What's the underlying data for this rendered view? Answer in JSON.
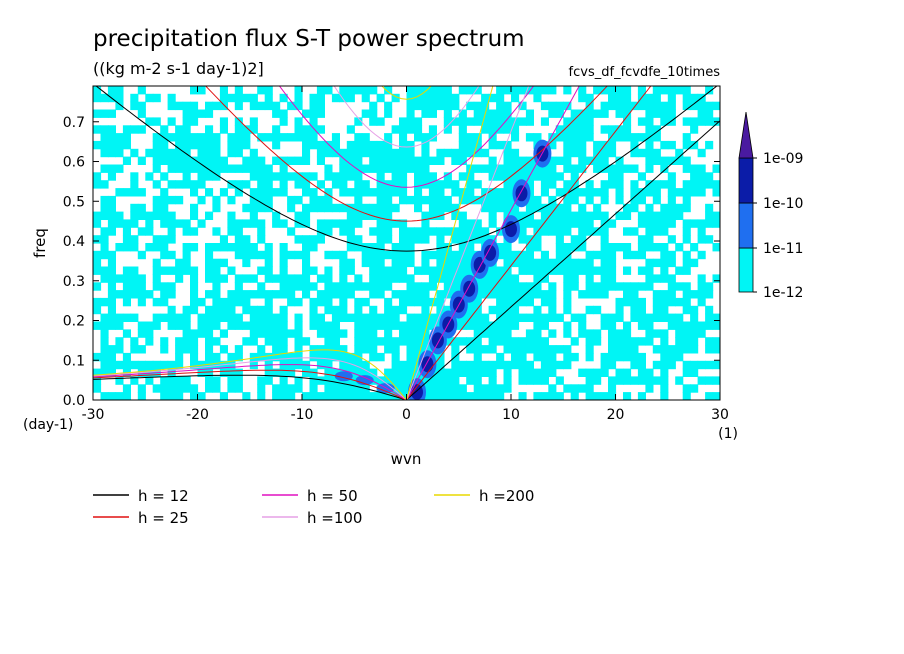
{
  "chart_data": {
    "type": "heatmap",
    "title": "precipitation flux S-T power spectrum",
    "subtitle": "((kg m-2 s-1 day-1)2]",
    "dataset_label": "fcvs_df_fcvdfe_10times",
    "xlabel": "wvn",
    "ylabel": "freq",
    "x_unit": "(1)",
    "y_unit": "(day-1)",
    "xlim": [
      -30,
      30
    ],
    "ylim": [
      0,
      0.79
    ],
    "x_ticks": [
      -30,
      -20,
      -10,
      0,
      10,
      20,
      30
    ],
    "x_tick_labels": [
      "-30",
      "-20",
      "-10",
      "0",
      "10",
      "20",
      "30"
    ],
    "y_ticks": [
      0,
      0.1,
      0.2,
      0.3,
      0.4,
      0.5,
      0.6,
      0.7
    ],
    "y_tick_labels": [
      "0.0",
      "0.1",
      "0.2",
      "0.3",
      "0.4",
      "0.5",
      "0.6",
      "0.7"
    ],
    "colorbar": {
      "labels": [
        "1e-12",
        "1e-11",
        "1e-10",
        "1e-09"
      ],
      "colors": [
        "#00f5f5",
        "#1f6ff0",
        "#0b1ca8",
        "#4a1aa0"
      ]
    },
    "dispersion_curves": [
      {
        "name": "h = 12",
        "h": 12,
        "color": "#000000"
      },
      {
        "name": "h = 25",
        "h": 25,
        "color": "#e01010"
      },
      {
        "name": "h = 50",
        "h": 50,
        "color": "#e010c0"
      },
      {
        "name": "h =100",
        "h": 100,
        "color": "#e6a0e6"
      },
      {
        "name": "h =200",
        "h": 200,
        "color": "#e8d800"
      }
    ],
    "kelvin_peak_ridge": [
      {
        "wvn": 1,
        "freq": 0.02
      },
      {
        "wvn": 2,
        "freq": 0.09
      },
      {
        "wvn": 3,
        "freq": 0.15
      },
      {
        "wvn": 4,
        "freq": 0.19
      },
      {
        "wvn": 5,
        "freq": 0.24
      },
      {
        "wvn": 6,
        "freq": 0.28
      },
      {
        "wvn": 7,
        "freq": 0.34
      },
      {
        "wvn": 8,
        "freq": 0.37
      },
      {
        "wvn": 10,
        "freq": 0.43
      },
      {
        "wvn": 11,
        "freq": 0.52
      },
      {
        "wvn": 13,
        "freq": 0.62
      }
    ]
  }
}
